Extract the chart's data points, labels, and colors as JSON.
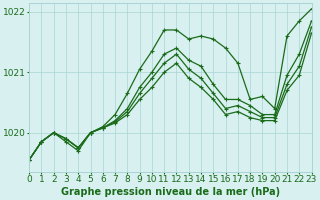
{
  "title": "Graphe pression niveau de la mer (hPa)",
  "background_color": "#d8f0f0",
  "line_color": "#1a6b1a",
  "grid_color": "#aad4d4",
  "text_color": "#1a6b1a",
  "xlim": [
    0,
    23
  ],
  "ylim": [
    1019.35,
    1022.15
  ],
  "yticks": [
    1020,
    1021,
    1022
  ],
  "ytick_labels": [
    "1020",
    "1021",
    "1022"
  ],
  "xticks": [
    0,
    1,
    2,
    3,
    4,
    5,
    6,
    7,
    8,
    9,
    10,
    11,
    12,
    13,
    14,
    15,
    16,
    17,
    18,
    19,
    20,
    21,
    22,
    23
  ],
  "series": [
    {
      "x": [
        0,
        1,
        2,
        3,
        4,
        5,
        6,
        7,
        8,
        9,
        10,
        11,
        12,
        13,
        14,
        15,
        16,
        17,
        18,
        19,
        20,
        21,
        22,
        23
      ],
      "y": [
        1019.55,
        1019.85,
        1020.0,
        1019.85,
        1019.7,
        1020.0,
        1020.1,
        1020.3,
        1020.65,
        1021.05,
        1021.35,
        1021.7,
        1021.7,
        1021.55,
        1021.6,
        1021.55,
        1021.4,
        1021.15,
        1020.55,
        1020.6,
        1020.4,
        1021.6,
        1021.85,
        1022.05
      ],
      "lw": 0.9
    },
    {
      "x": [
        0,
        1,
        2,
        3,
        4,
        5,
        6,
        7,
        8,
        9,
        10,
        11,
        12,
        13,
        14,
        15,
        16,
        17,
        18,
        19,
        20,
        21,
        22,
        23
      ],
      "y": [
        1019.55,
        1019.85,
        1020.0,
        1019.9,
        1019.75,
        1020.0,
        1020.08,
        1020.2,
        1020.4,
        1020.75,
        1021.0,
        1021.3,
        1021.4,
        1021.2,
        1021.1,
        1020.8,
        1020.55,
        1020.55,
        1020.45,
        1020.3,
        1020.3,
        1020.95,
        1021.3,
        1021.85
      ],
      "lw": 0.9
    },
    {
      "x": [
        0,
        1,
        2,
        3,
        4,
        5,
        6,
        7,
        8,
        9,
        10,
        11,
        12,
        13,
        14,
        15,
        16,
        17,
        18,
        19,
        20,
        21,
        22,
        23
      ],
      "y": [
        1019.55,
        1019.85,
        1020.0,
        1019.9,
        1019.75,
        1020.0,
        1020.08,
        1020.18,
        1020.35,
        1020.65,
        1020.9,
        1021.15,
        1021.3,
        1021.05,
        1020.9,
        1020.65,
        1020.4,
        1020.45,
        1020.35,
        1020.25,
        1020.25,
        1020.8,
        1021.1,
        1021.75
      ],
      "lw": 0.9
    },
    {
      "x": [
        0,
        1,
        2,
        3,
        4,
        5,
        6,
        7,
        8,
        9,
        10,
        11,
        12,
        13,
        14,
        15,
        16,
        17,
        18,
        19,
        20,
        21,
        22,
        23
      ],
      "y": [
        1019.55,
        1019.85,
        1020.0,
        1019.9,
        1019.75,
        1020.0,
        1020.08,
        1020.16,
        1020.3,
        1020.55,
        1020.75,
        1021.0,
        1021.15,
        1020.9,
        1020.75,
        1020.55,
        1020.3,
        1020.35,
        1020.25,
        1020.2,
        1020.2,
        1020.7,
        1020.95,
        1021.65
      ],
      "lw": 0.9
    }
  ],
  "xlabel_fontsize": 7.0,
  "tick_fontsize": 6.5
}
